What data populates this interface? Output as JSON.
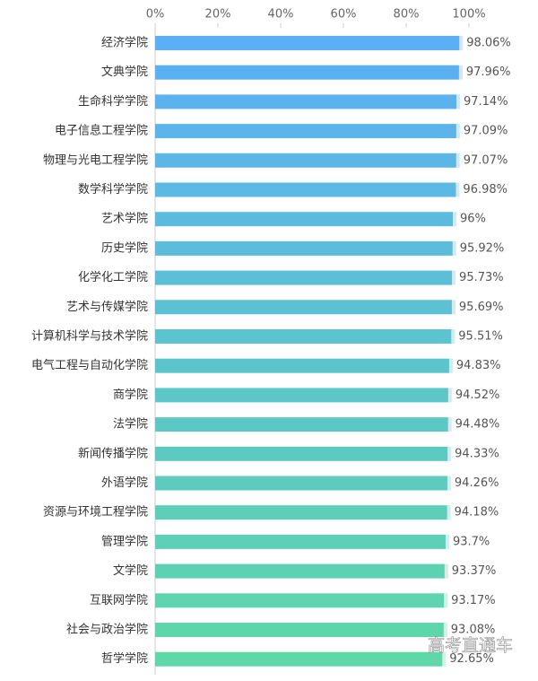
{
  "chart_data": {
    "type": "bar",
    "orientation": "horizontal",
    "categories": [
      "经济学院",
      "文典学院",
      "生命科学学院",
      "电子信息工程学院",
      "物理与光电工程学院",
      "数学科学学院",
      "艺术学院",
      "历史学院",
      "化学化工学院",
      "艺术与传媒学院",
      "计算机科学与技术学院",
      "电气工程与自动化学院",
      "商学院",
      "法学院",
      "新闻传播学院",
      "外语学院",
      "资源与环境工程学院",
      "管理学院",
      "文学院",
      "互联网学院",
      "社会与政治学院",
      "哲学学院"
    ],
    "values": [
      98.06,
      97.96,
      97.14,
      97.09,
      97.07,
      96.98,
      96,
      95.92,
      95.73,
      95.69,
      95.51,
      94.83,
      94.52,
      94.48,
      94.33,
      94.26,
      94.18,
      93.7,
      93.37,
      93.17,
      93.08,
      92.65
    ],
    "value_labels": [
      "98.06%",
      "97.96%",
      "97.14%",
      "97.09%",
      "97.07%",
      "96.98%",
      "96%",
      "95.92%",
      "95.73%",
      "95.69%",
      "95.51%",
      "94.83%",
      "94.52%",
      "94.48%",
      "94.33%",
      "94.26%",
      "94.18%",
      "93.7%",
      "93.37%",
      "93.17%",
      "93.08%",
      "92.65%"
    ],
    "colors": [
      "#5aaff5",
      "#5ab1f1",
      "#5ab3ee",
      "#5bb5ea",
      "#5bb7e6",
      "#5bb9e3",
      "#5bbbdf",
      "#5bbddb",
      "#5cbfd8",
      "#5cc1d4",
      "#5cc3d0",
      "#5cc4cd",
      "#5cc6c9",
      "#5cc8c5",
      "#5dcac2",
      "#5dccbe",
      "#5dceba",
      "#5dd0b7",
      "#5dd2b3",
      "#5ed4af",
      "#5ed6ac",
      "#5ed8a8"
    ],
    "xlim": [
      0,
      100
    ],
    "xticks": [
      {
        "value": 0,
        "label": "0%"
      },
      {
        "value": 20,
        "label": "20%"
      },
      {
        "value": 40,
        "label": "40%"
      },
      {
        "value": 60,
        "label": "60%"
      },
      {
        "value": 80,
        "label": "80%"
      },
      {
        "value": 100,
        "label": "100%"
      }
    ],
    "grid": false,
    "watermark": "高考直通车"
  }
}
